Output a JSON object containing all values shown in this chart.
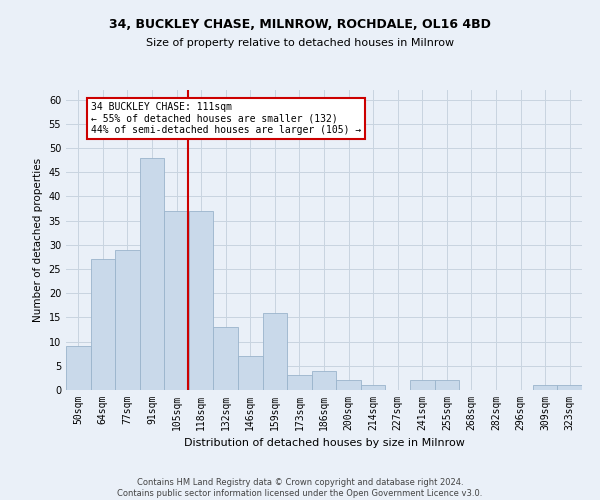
{
  "title1": "34, BUCKLEY CHASE, MILNROW, ROCHDALE, OL16 4BD",
  "title2": "Size of property relative to detached houses in Milnrow",
  "xlabel": "Distribution of detached houses by size in Milnrow",
  "ylabel": "Number of detached properties",
  "categories": [
    "50sqm",
    "64sqm",
    "77sqm",
    "91sqm",
    "105sqm",
    "118sqm",
    "132sqm",
    "146sqm",
    "159sqm",
    "173sqm",
    "186sqm",
    "200sqm",
    "214sqm",
    "227sqm",
    "241sqm",
    "255sqm",
    "268sqm",
    "282sqm",
    "296sqm",
    "309sqm",
    "323sqm"
  ],
  "values": [
    9,
    27,
    29,
    48,
    37,
    37,
    13,
    7,
    16,
    3,
    4,
    2,
    1,
    0,
    2,
    2,
    0,
    0,
    0,
    1,
    1
  ],
  "bar_color": "#c9d9ea",
  "bar_edge_color": "#9ab4cc",
  "vline_color": "#cc0000",
  "annotation_text": "34 BUCKLEY CHASE: 111sqm\n← 55% of detached houses are smaller (132)\n44% of semi-detached houses are larger (105) →",
  "annotation_box_color": "#ffffff",
  "annotation_box_edge_color": "#cc0000",
  "ylim": [
    0,
    62
  ],
  "yticks": [
    0,
    5,
    10,
    15,
    20,
    25,
    30,
    35,
    40,
    45,
    50,
    55,
    60
  ],
  "grid_color": "#c8d4e0",
  "background_color": "#eaf0f8",
  "footer_text": "Contains HM Land Registry data © Crown copyright and database right 2024.\nContains public sector information licensed under the Open Government Licence v3.0.",
  "bar_width": 1.0,
  "title1_fontsize": 9,
  "title2_fontsize": 8,
  "xlabel_fontsize": 8,
  "ylabel_fontsize": 7.5,
  "tick_fontsize": 7,
  "annotation_fontsize": 7,
  "footer_fontsize": 6
}
